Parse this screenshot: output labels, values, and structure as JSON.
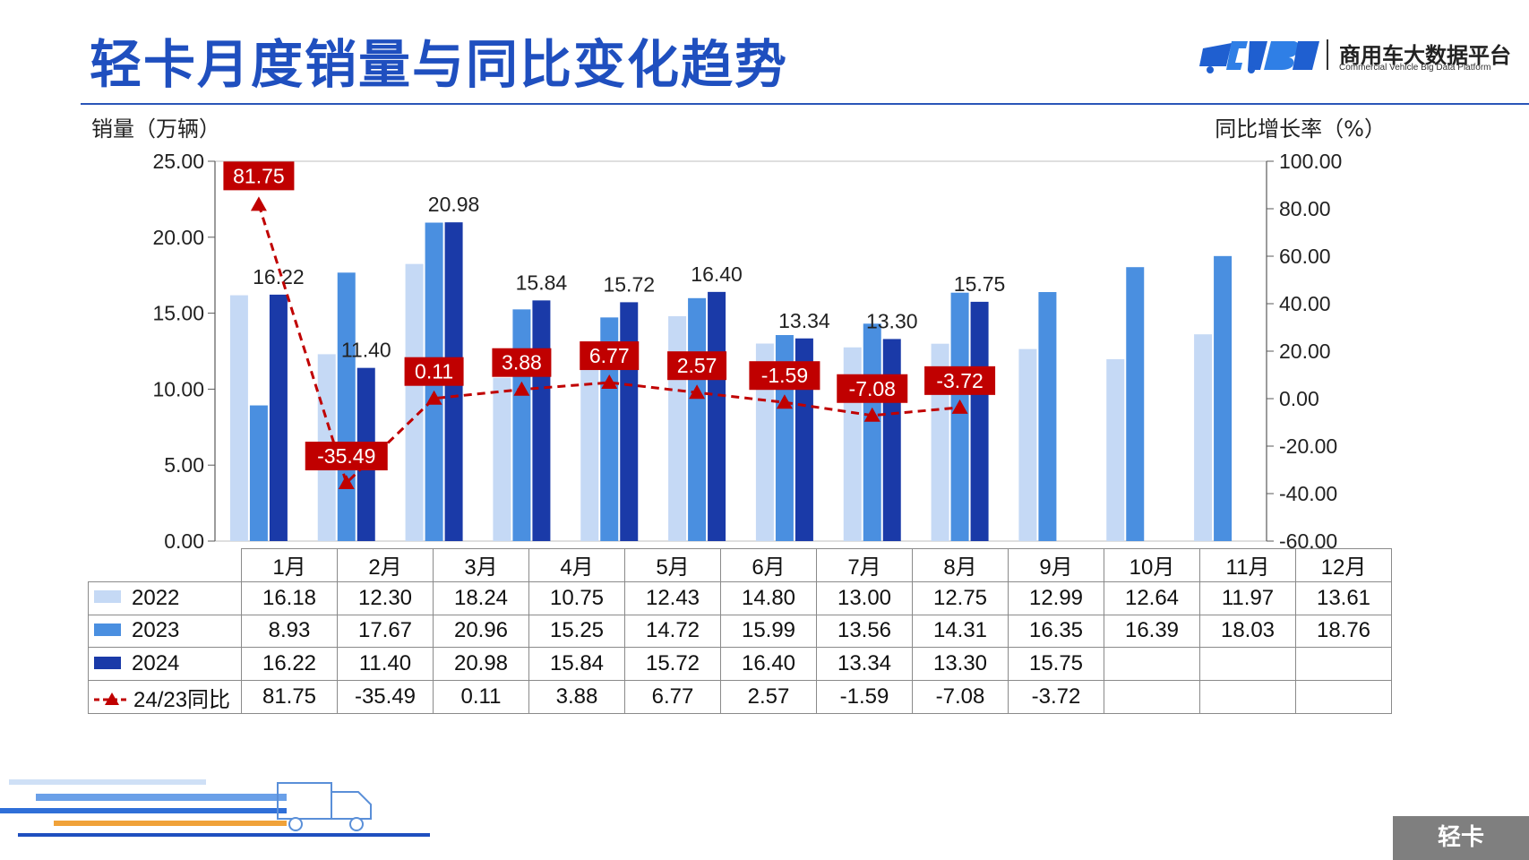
{
  "header": {
    "title": "轻卡月度销量与同比变化趋势",
    "logo_cn": "商用车大数据平台",
    "logo_en": "Commercial Vehicle Big Data Platform",
    "corner_tag": "轻卡"
  },
  "chart_data": {
    "type": "bar",
    "categories": [
      "1月",
      "2月",
      "3月",
      "4月",
      "5月",
      "6月",
      "7月",
      "8月",
      "9月",
      "10月",
      "11月",
      "12月"
    ],
    "series": [
      {
        "name": "2022",
        "color": "#c5d9f5",
        "values": [
          16.18,
          12.3,
          18.24,
          10.75,
          12.43,
          14.8,
          13.0,
          12.75,
          12.99,
          12.64,
          11.97,
          13.61
        ],
        "display": [
          "16.18",
          "12.30",
          "18.24",
          "10.75",
          "12.43",
          "14.80",
          "13.00",
          "12.75",
          "12.99",
          "12.64",
          "11.97",
          "13.61"
        ]
      },
      {
        "name": "2023",
        "color": "#4a8fe0",
        "values": [
          8.93,
          17.67,
          20.96,
          15.25,
          14.72,
          15.99,
          13.56,
          14.31,
          16.35,
          16.39,
          18.03,
          18.76
        ],
        "display": [
          "8.93",
          "17.67",
          "20.96",
          "15.25",
          "14.72",
          "15.99",
          "13.56",
          "14.31",
          "16.35",
          "16.39",
          "18.03",
          "18.76"
        ]
      },
      {
        "name": "2024",
        "color": "#1a3aa8",
        "values": [
          16.22,
          11.4,
          20.98,
          15.84,
          15.72,
          16.4,
          13.34,
          13.3,
          15.75,
          null,
          null,
          null
        ],
        "display": [
          "16.22",
          "11.40",
          "20.98",
          "15.84",
          "15.72",
          "16.40",
          "13.34",
          "13.30",
          "15.75",
          "",
          "",
          ""
        ]
      }
    ],
    "yoy": {
      "name": "24/23同比",
      "color": "#c00000",
      "values": [
        81.75,
        -35.49,
        0.11,
        3.88,
        6.77,
        2.57,
        -1.59,
        -7.08,
        -3.72,
        null,
        null,
        null
      ],
      "display": [
        "81.75",
        "-35.49",
        "0.11",
        "3.88",
        "6.77",
        "2.57",
        "-1.59",
        "-7.08",
        "-3.72",
        "",
        "",
        ""
      ]
    },
    "ylabel_left": "销量（万辆）",
    "ylabel_right": "同比增长率（%）",
    "ylim_left": [
      0,
      25
    ],
    "yticks_left": [
      "0.00",
      "5.00",
      "10.00",
      "15.00",
      "20.00",
      "25.00"
    ],
    "ylim_right": [
      -60,
      100
    ],
    "yticks_right": [
      "-60.00",
      "-40.00",
      "-20.00",
      "0.00",
      "20.00",
      "40.00",
      "60.00",
      "80.00",
      "100.00"
    ],
    "legend": "table",
    "grid": false
  }
}
